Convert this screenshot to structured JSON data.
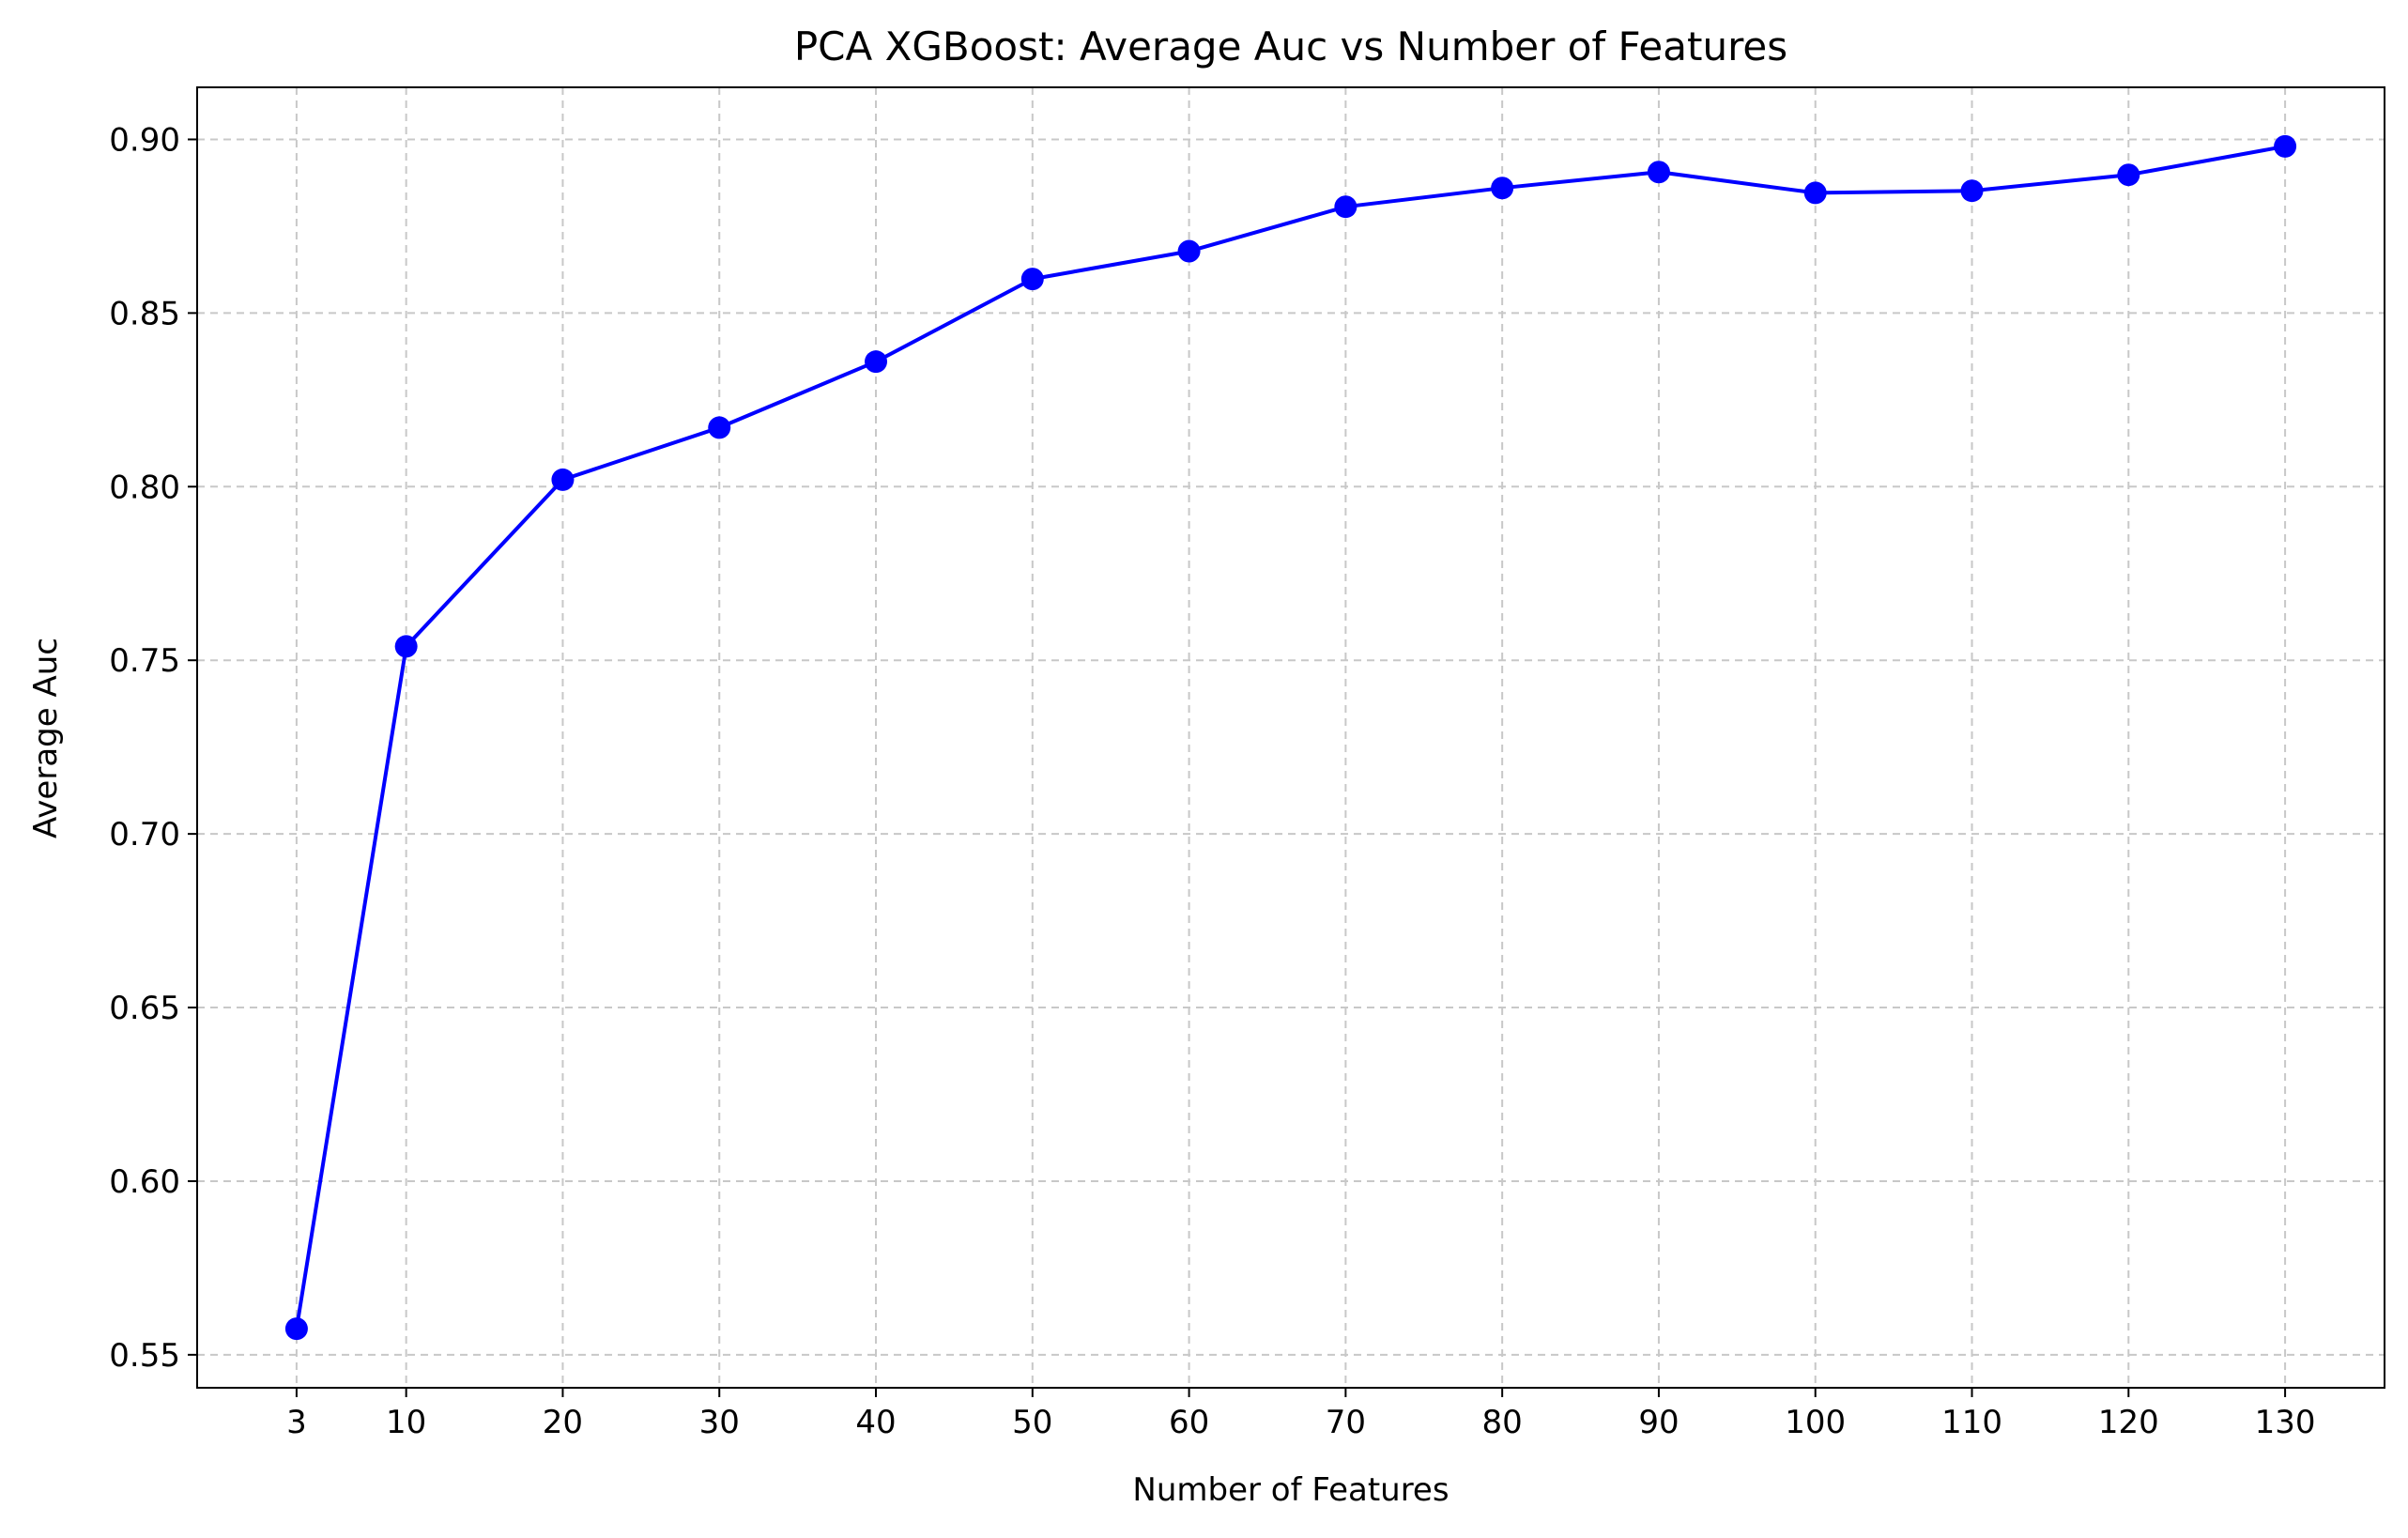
{
  "chart_data": {
    "type": "line",
    "title": "PCA XGBoost: Average Auc vs Number of Features",
    "xlabel": "Number of Features",
    "ylabel": "Average Auc",
    "x": [
      3,
      10,
      20,
      30,
      40,
      50,
      60,
      70,
      80,
      90,
      100,
      110,
      120,
      130
    ],
    "series": [
      {
        "values": [
          0.5575,
          0.754,
          0.802,
          0.817,
          0.836,
          0.8598,
          0.8678,
          0.8806,
          0.886,
          0.8906,
          0.8846,
          0.8852,
          0.8898,
          0.898
        ],
        "color": "#0000ff",
        "marker": "circle"
      }
    ],
    "xticks": [
      3,
      10,
      20,
      30,
      40,
      50,
      60,
      70,
      80,
      90,
      100,
      110,
      120,
      130
    ],
    "yticks": [
      0.55,
      0.6,
      0.65,
      0.7,
      0.75,
      0.8,
      0.85,
      0.9
    ],
    "ytick_labels": [
      "0.55",
      "0.60",
      "0.65",
      "0.70",
      "0.75",
      "0.80",
      "0.85",
      "0.90"
    ],
    "xlim": [
      -3.35,
      136.35
    ],
    "ylim": [
      0.5405,
      0.915
    ],
    "grid": true,
    "legend": false
  }
}
